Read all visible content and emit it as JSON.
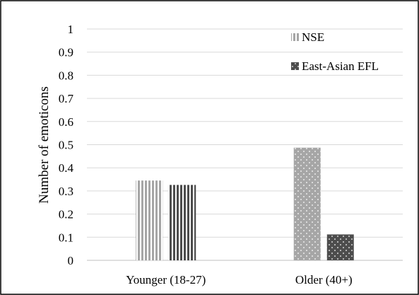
{
  "chart_data": {
    "type": "bar",
    "title": "",
    "xlabel": "",
    "ylabel": "Number of emoticons",
    "ylim": [
      0,
      1
    ],
    "yticks": [
      "0",
      "0.1",
      "0.2",
      "0.3",
      "0.4",
      "0.5",
      "0.6",
      "0.7",
      "0.8",
      "0.9",
      "1"
    ],
    "categories": [
      "Younger (18-27)",
      "Older (40+)"
    ],
    "grid": true,
    "legend_position": "top-right",
    "series": [
      {
        "name": "NSE",
        "values": [
          0.345,
          0.487
        ],
        "color": "#a6a6a6",
        "pattern_by_category": [
          "vertical-stripes",
          "dots"
        ]
      },
      {
        "name": "East-Asian EFL",
        "values": [
          0.326,
          0.112
        ],
        "color": "#4d4d4d",
        "pattern_by_category": [
          "vertical-stripes",
          "dots"
        ]
      }
    ]
  }
}
